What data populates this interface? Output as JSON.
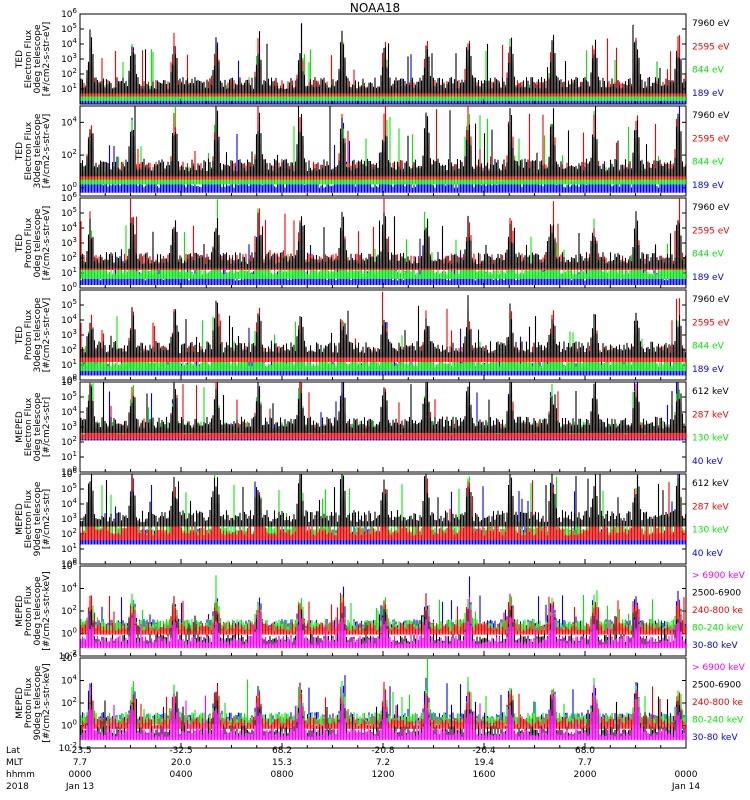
{
  "title": "NOAA18",
  "colors": {
    "black": "#000000",
    "red": "#ff0000",
    "green": "#00ee00",
    "blue": "#0000ff",
    "magenta": "#ff00ff"
  },
  "chart_data": [
    {
      "type": "line",
      "ylabel": [
        "TED",
        "Electron Flux",
        "0deg telescope",
        "[#/cm2-s-str-eV]"
      ],
      "yticks": [
        "10^1",
        "10^2",
        "10^3",
        "10^4",
        "10^5",
        "10^6"
      ],
      "ylim_exp": [
        0,
        6
      ],
      "legend": [
        {
          "label": "7960 eV",
          "color": "#000000"
        },
        {
          "label": "2595 eV",
          "color": "#ff0000"
        },
        {
          "label": "844 eV",
          "color": "#00ee00"
        },
        {
          "label": "189 eV",
          "color": "#0000ff"
        }
      ]
    },
    {
      "type": "line",
      "ylabel": [
        "TED",
        "Electron Flux",
        "30deg telescope",
        "[#/cm2-s-str-eV]"
      ],
      "yticks": [
        "10^0",
        "10^2",
        "10^4"
      ],
      "ylim_exp": [
        -0.5,
        5
      ],
      "legend": [
        {
          "label": "7960 eV",
          "color": "#000000"
        },
        {
          "label": "2595 eV",
          "color": "#ff0000"
        },
        {
          "label": "844 eV",
          "color": "#00ee00"
        },
        {
          "label": "189 eV",
          "color": "#0000ff"
        }
      ]
    },
    {
      "type": "line",
      "ylabel": [
        "TED",
        "Proton Flux",
        "0deg telescope",
        "[#/cm2-s-str-eV]"
      ],
      "yticks": [
        "10^0",
        "10^1",
        "10^2",
        "10^3",
        "10^4",
        "10^5",
        "10^6"
      ],
      "ylim_exp": [
        0,
        6
      ],
      "legend": [
        {
          "label": "7960 eV",
          "color": "#000000"
        },
        {
          "label": "2595 eV",
          "color": "#ff0000"
        },
        {
          "label": "844 eV",
          "color": "#00ee00"
        },
        {
          "label": "189 eV",
          "color": "#0000ff"
        }
      ]
    },
    {
      "type": "line",
      "ylabel": [
        "TED",
        "Proton Flux",
        "30deg telescope",
        "[#/cm2-s-str-eV]"
      ],
      "yticks": [
        "10^0",
        "10^1",
        "10^2",
        "10^3",
        "10^4",
        "10^5"
      ],
      "ylim_exp": [
        0,
        6
      ],
      "legend": [
        {
          "label": "7960 eV",
          "color": "#000000"
        },
        {
          "label": "2595 eV",
          "color": "#ff0000"
        },
        {
          "label": "844 eV",
          "color": "#00ee00"
        },
        {
          "label": "189 eV",
          "color": "#0000ff"
        }
      ]
    },
    {
      "type": "line",
      "ylabel": [
        "MEPED",
        "Electron Flux",
        "0deg telescope",
        "[#/cm2-s-str]"
      ],
      "yticks": [
        "10^0",
        "10^1",
        "10^2",
        "10^3",
        "10^4",
        "10^5",
        "10^6"
      ],
      "ylim_exp": [
        0,
        6
      ],
      "legend": [
        {
          "label": "612 keV",
          "color": "#000000"
        },
        {
          "label": "287 keV",
          "color": "#ff0000"
        },
        {
          "label": "130 keV",
          "color": "#00ee00"
        },
        {
          "label": "40 keV",
          "color": "#0000ff"
        }
      ]
    },
    {
      "type": "line",
      "ylabel": [
        "MEPED",
        "Electron Flux",
        "90deg telescope",
        "[#/cm2-s-str]"
      ],
      "yticks": [
        "10^0",
        "10^1",
        "10^2",
        "10^3",
        "10^4",
        "10^5",
        "10^6"
      ],
      "ylim_exp": [
        0,
        6
      ],
      "legend": [
        {
          "label": "612 keV",
          "color": "#000000"
        },
        {
          "label": "287 keV",
          "color": "#ff0000"
        },
        {
          "label": "130 keV",
          "color": "#00ee00"
        },
        {
          "label": "40 keV",
          "color": "#0000ff"
        }
      ]
    },
    {
      "type": "line",
      "ylabel": [
        "MEPED",
        "Proton Flux",
        "0deg telescope",
        "[#/cm2-s-str-keV]"
      ],
      "yticks": [
        "10^-2",
        "10^0",
        "10^2",
        "10^4",
        "10^6"
      ],
      "ylim_exp": [
        -2,
        6
      ],
      "legend": [
        {
          "label": "> 6900 keV",
          "color": "#ff00ff"
        },
        {
          "label": "2500-6900",
          "color": "#000000"
        },
        {
          "label": "240-800 ke",
          "color": "#ff0000"
        },
        {
          "label": "80-240 keV",
          "color": "#00ee00"
        },
        {
          "label": "30-80 keV",
          "color": "#0000ff"
        }
      ]
    },
    {
      "type": "line",
      "ylabel": [
        "MEPED",
        "Proton Flux",
        "90deg telescope",
        "[#/cm2-s-str-keV]"
      ],
      "yticks": [
        "10^-2",
        "10^0",
        "10^2",
        "10^4",
        "10^6"
      ],
      "ylim_exp": [
        -2,
        6
      ],
      "legend": [
        {
          "label": "> 6900 keV",
          "color": "#ff00ff"
        },
        {
          "label": "2500-6900",
          "color": "#000000"
        },
        {
          "label": "240-800 ke",
          "color": "#ff0000"
        },
        {
          "label": "80-240 keV",
          "color": "#00ee00"
        },
        {
          "label": "30-80 keV",
          "color": "#0000ff"
        }
      ]
    }
  ],
  "x_axis": {
    "row_labels": [
      "Lat",
      "MLT",
      "hhmm",
      "2018"
    ],
    "ticks": [
      {
        "lat": "-23.5",
        "mlt": "7.7",
        "hhmm": "0000",
        "date": "Jan 13"
      },
      {
        "lat": "-32.5",
        "mlt": "20.0",
        "hhmm": "0400",
        "date": ""
      },
      {
        "lat": "68.2",
        "mlt": "15.3",
        "hhmm": "0800",
        "date": ""
      },
      {
        "lat": "-20.8",
        "mlt": "7.2",
        "hhmm": "1200",
        "date": ""
      },
      {
        "lat": "-26.4",
        "mlt": "19.4",
        "hhmm": "1600",
        "date": ""
      },
      {
        "lat": "68.0",
        "mlt": "7.7",
        "hhmm": "2000",
        "date": ""
      },
      {
        "lat": "",
        "mlt": "",
        "hhmm": "0000",
        "date": "Jan 14"
      }
    ]
  }
}
